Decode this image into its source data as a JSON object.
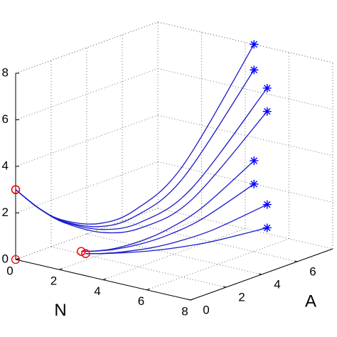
{
  "chart_data": {
    "type": "line3d",
    "xlabel": "N",
    "ylabel": "A",
    "xlim": [
      0,
      8
    ],
    "ylim": [
      0,
      8
    ],
    "zlim": [
      0,
      8
    ],
    "xticks": [
      0,
      2,
      4,
      6,
      8
    ],
    "yticks": [
      0,
      2,
      4,
      6
    ],
    "zticks": [
      0,
      2,
      4,
      6,
      8
    ],
    "grid": true,
    "start_marker_color": "#ff0000",
    "end_marker_color": "#0000ff",
    "series": [
      {
        "color": "#1a1acc",
        "N": [
          0,
          0.44,
          0.88,
          1.54,
          2.2,
          3.08,
          4.4
        ],
        "A": [
          0,
          0.8,
          1.6,
          2.8,
          4,
          5.6,
          8
        ],
        "Z": [
          3,
          2.06,
          1.44,
          1.11,
          1.5,
          3.14,
          8
        ]
      },
      {
        "color": "#1a1acc",
        "N": [
          0,
          0.44,
          0.88,
          1.54,
          2.2,
          3.08,
          4.4
        ],
        "A": [
          0,
          0.8,
          1.6,
          2.8,
          4,
          5.6,
          8
        ],
        "Z": [
          3,
          2.05,
          1.4,
          0.98,
          1.23,
          2.6,
          6.9
        ]
      },
      {
        "color": "#1a1acc",
        "N": [
          0,
          0.5,
          1,
          1.75,
          2.5,
          3.5,
          5
        ],
        "A": [
          0,
          0.8,
          1.6,
          2.8,
          4,
          5.6,
          8
        ],
        "Z": [
          3,
          2.04,
          1.37,
          0.9,
          1.06,
          2.28,
          6.25
        ]
      },
      {
        "color": "#1a1acc",
        "N": [
          0,
          0.5,
          1,
          1.75,
          2.5,
          3.5,
          5
        ],
        "A": [
          0,
          0.8,
          1.6,
          2.8,
          4,
          5.6,
          8
        ],
        "Z": [
          3,
          2.03,
          1.33,
          0.77,
          0.81,
          1.79,
          5.25
        ]
      },
      {
        "color": "#1a1acc",
        "N": [
          3,
          3.14,
          3.28,
          3.49,
          3.7,
          3.98,
          4.4
        ],
        "A": [
          0,
          0.8,
          1.6,
          2.8,
          4,
          5.6,
          8
        ],
        "Z": [
          1,
          0.84,
          0.76,
          0.79,
          1,
          1.56,
          3
        ]
      },
      {
        "color": "#1a1acc",
        "N": [
          3,
          3.14,
          3.28,
          3.49,
          3.7,
          3.98,
          4.4
        ],
        "A": [
          0,
          0.8,
          1.6,
          2.8,
          4,
          5.6,
          8
        ],
        "Z": [
          1,
          0.83,
          0.72,
          0.67,
          0.75,
          1.07,
          2
        ]
      },
      {
        "color": "#1a1acc",
        "N": [
          3.2,
          3.38,
          3.56,
          3.83,
          4.1,
          4.46,
          5
        ],
        "A": [
          0,
          0.8,
          1.6,
          2.8,
          4,
          5.6,
          8
        ],
        "Z": [
          0.95,
          0.78,
          0.66,
          0.55,
          0.55,
          0.7,
          1.25
        ]
      },
      {
        "color": "#1a1acc",
        "N": [
          3.2,
          3.38,
          3.56,
          3.83,
          4.1,
          4.46,
          5
        ],
        "A": [
          0,
          0.8,
          1.6,
          2.8,
          4,
          5.6,
          8
        ],
        "Z": [
          0.95,
          0.77,
          0.62,
          0.43,
          0.3,
          0.21,
          0.25
        ]
      }
    ],
    "points": {
      "N": [
        0
      ],
      "A": [
        0
      ],
      "Z": [
        0
      ]
    }
  }
}
